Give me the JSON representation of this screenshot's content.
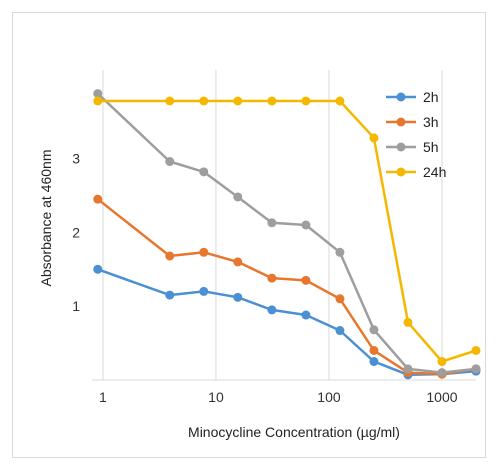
{
  "chart_data": {
    "type": "line",
    "title": "",
    "xlabel": "Minocycline Concentration (µg/ml)",
    "ylabel": "Absorbance at 460nm",
    "x_scale": "log",
    "xlim": [
      0.8,
      2000
    ],
    "ylim": [
      0,
      4.2
    ],
    "x_ticks": [
      1,
      10,
      100,
      1000
    ],
    "x_tick_labels": [
      "1",
      "10",
      "100",
      "1000"
    ],
    "y_ticks": [
      1,
      2,
      3
    ],
    "y_tick_labels": [
      "1",
      "2",
      "3"
    ],
    "grid": "vertical",
    "legend_position": "top-right",
    "x": [
      0.9,
      3.9,
      7.8,
      15.6,
      31.25,
      62.5,
      125,
      250,
      500,
      1000,
      2000
    ],
    "series": [
      {
        "name": "2h",
        "color": "#4a90d2",
        "values": [
          1.5,
          1.15,
          1.2,
          1.12,
          0.95,
          0.88,
          0.67,
          0.25,
          0.07,
          0.08,
          0.12
        ]
      },
      {
        "name": "3h",
        "color": "#e8772e",
        "values": [
          2.45,
          1.68,
          1.73,
          1.6,
          1.38,
          1.35,
          1.1,
          0.4,
          0.1,
          0.08,
          0.15
        ]
      },
      {
        "name": "5h",
        "color": "#9e9e9e",
        "values": [
          3.88,
          2.96,
          2.82,
          2.48,
          2.13,
          2.1,
          1.73,
          0.68,
          0.15,
          0.1,
          0.15
        ]
      },
      {
        "name": "24h",
        "color": "#f5b800",
        "values": [
          3.78,
          3.78,
          3.78,
          3.78,
          3.78,
          3.78,
          3.78,
          3.28,
          0.78,
          0.25,
          0.4
        ]
      }
    ]
  }
}
